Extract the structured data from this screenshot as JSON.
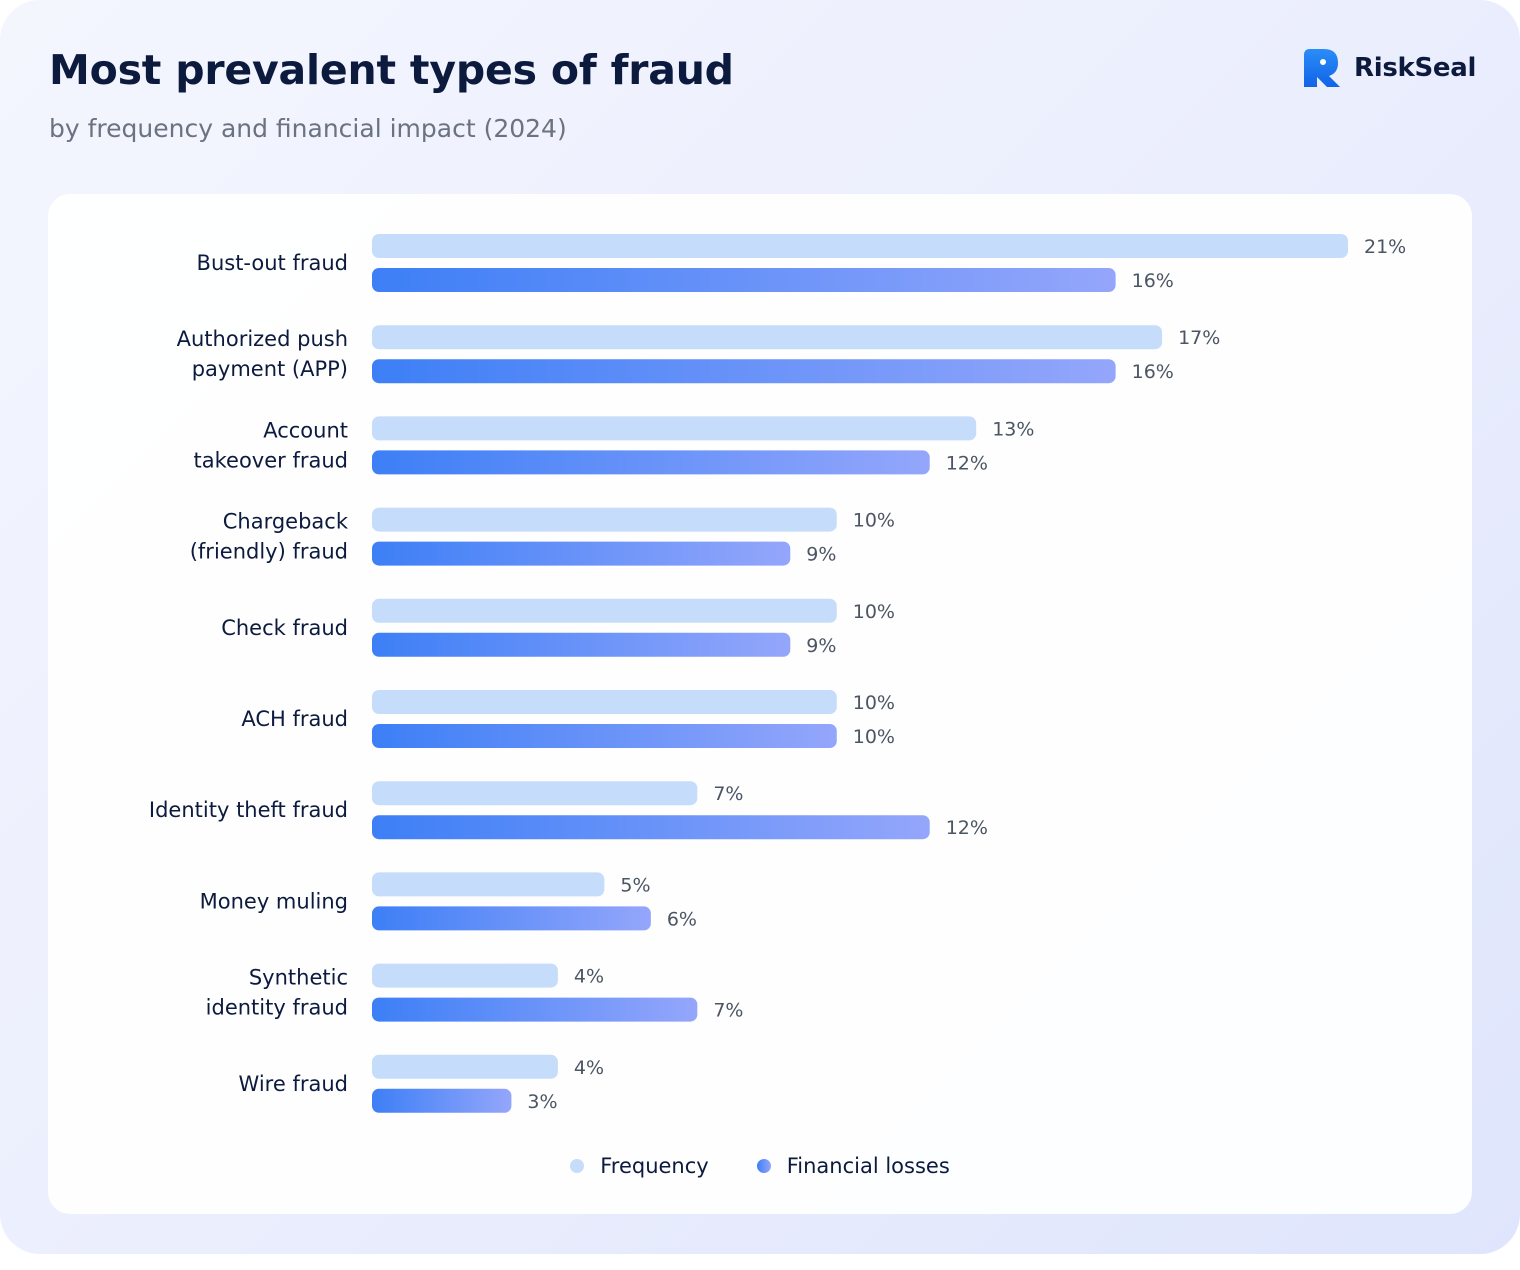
{
  "header": {
    "title": "Most prevalent types of fraud",
    "subtitle": "by frequency and financial impact (2024)"
  },
  "brand": {
    "name": "RiskSeal",
    "icon": "riskseal-logo-icon"
  },
  "colors": {
    "frequency": "#c6dcfb",
    "financial_losses_start": "#3d7ff6",
    "financial_losses_end": "#94a6fb",
    "label": "#0c1a3e",
    "value_label": "#4b5563"
  },
  "chart_data": {
    "type": "bar",
    "orientation": "horizontal",
    "categories": [
      [
        "Bust-out fraud"
      ],
      [
        "Authorized push",
        "payment (APP)"
      ],
      [
        "Account",
        "takeover fraud"
      ],
      [
        "Chargeback",
        "(friendly) fraud"
      ],
      [
        "Check fraud"
      ],
      [
        "ACH fraud"
      ],
      [
        "Identity theft fraud"
      ],
      [
        "Money muling"
      ],
      [
        "Synthetic",
        "identity fraud"
      ],
      [
        "Wire fraud"
      ]
    ],
    "series": [
      {
        "name": "Frequency",
        "values": [
          21,
          17,
          13,
          10,
          10,
          10,
          7,
          5,
          4,
          4
        ],
        "labels": [
          "21%",
          "17%",
          "13%",
          "10%",
          "10%",
          "10%",
          "7%",
          "5%",
          "4%",
          "4%"
        ]
      },
      {
        "name": "Financial losses",
        "values": [
          16,
          16,
          12,
          9,
          9,
          10,
          12,
          6,
          7,
          3
        ],
        "labels": [
          "16%",
          "16%",
          "12%",
          "9%",
          "9%",
          "10%",
          "12%",
          "6%",
          "7%",
          "3%"
        ]
      }
    ],
    "unit": "%",
    "xlim": [
      0,
      21
    ],
    "grid": false,
    "legend_position": "bottom-center"
  }
}
